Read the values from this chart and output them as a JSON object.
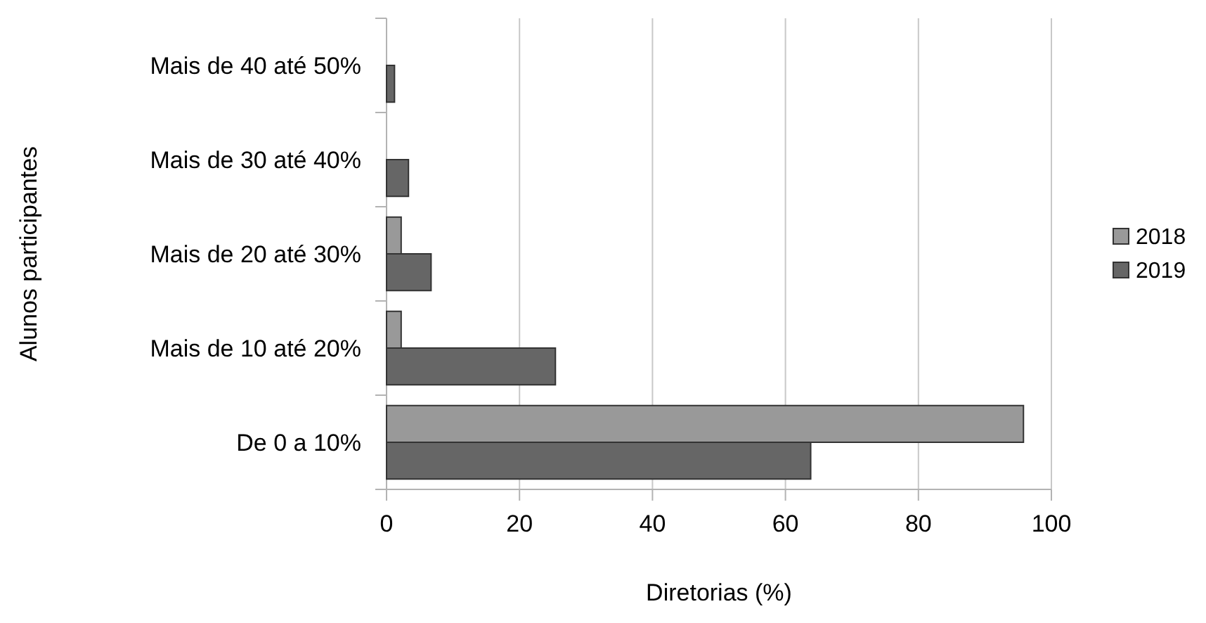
{
  "chart_data": {
    "type": "bar",
    "orientation": "horizontal",
    "xlabel": "Diretorias (%)",
    "ylabel": "Alunos participantes",
    "categories": [
      "Mais de 40 até 50%",
      "Mais de 30 até 40%",
      "Mais de 20 até 30%",
      "Mais de 10 até 20%",
      "De 0 a 10%"
    ],
    "series": [
      {
        "name": "2018",
        "color": "#999999",
        "values": [
          0,
          0,
          2.2,
          2.2,
          95.8
        ]
      },
      {
        "name": "2019",
        "color": "#666666",
        "values": [
          1.2,
          3.3,
          6.7,
          25.4,
          63.8
        ]
      }
    ],
    "xlim": [
      0,
      100
    ],
    "xticks": [
      0,
      20,
      40,
      60,
      80,
      100
    ],
    "grid": "x",
    "legend": "right"
  }
}
